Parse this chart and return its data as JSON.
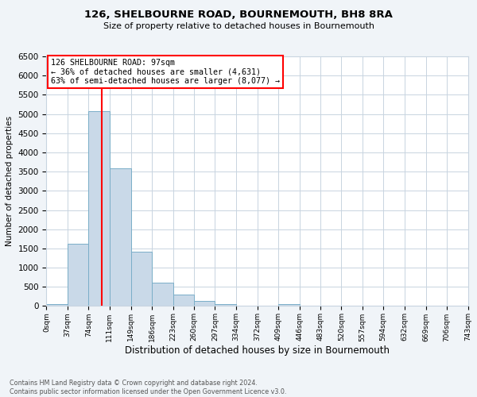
{
  "title": "126, SHELBOURNE ROAD, BOURNEMOUTH, BH8 8RA",
  "subtitle": "Size of property relative to detached houses in Bournemouth",
  "xlabel": "Distribution of detached houses by size in Bournemouth",
  "ylabel": "Number of detached properties",
  "bar_edges": [
    0,
    37,
    74,
    111,
    149,
    186,
    223,
    260,
    297,
    334,
    372,
    409,
    446,
    483,
    520,
    557,
    594,
    632,
    669,
    706,
    743
  ],
  "bar_heights": [
    50,
    1630,
    5080,
    3580,
    1410,
    610,
    300,
    140,
    50,
    0,
    0,
    50,
    0,
    0,
    0,
    0,
    0,
    0,
    0,
    0
  ],
  "bar_color": "#c9d9e8",
  "bar_edge_color": "#7aaec8",
  "vline_x": 97,
  "vline_color": "red",
  "ylim": [
    0,
    6500
  ],
  "yticks": [
    0,
    500,
    1000,
    1500,
    2000,
    2500,
    3000,
    3500,
    4000,
    4500,
    5000,
    5500,
    6000,
    6500
  ],
  "xtick_labels": [
    "0sqm",
    "37sqm",
    "74sqm",
    "111sqm",
    "149sqm",
    "186sqm",
    "223sqm",
    "260sqm",
    "297sqm",
    "334sqm",
    "372sqm",
    "409sqm",
    "446sqm",
    "483sqm",
    "520sqm",
    "557sqm",
    "594sqm",
    "632sqm",
    "669sqm",
    "706sqm",
    "743sqm"
  ],
  "annotation_title": "126 SHELBOURNE ROAD: 97sqm",
  "annotation_line1": "← 36% of detached houses are smaller (4,631)",
  "annotation_line2": "63% of semi-detached houses are larger (8,077) →",
  "annotation_box_color": "white",
  "annotation_box_edgecolor": "red",
  "footer_line1": "Contains HM Land Registry data © Crown copyright and database right 2024.",
  "footer_line2": "Contains public sector information licensed under the Open Government Licence v3.0.",
  "bg_color": "#f0f4f8",
  "plot_bg_color": "white",
  "grid_color": "#c8d4e0"
}
